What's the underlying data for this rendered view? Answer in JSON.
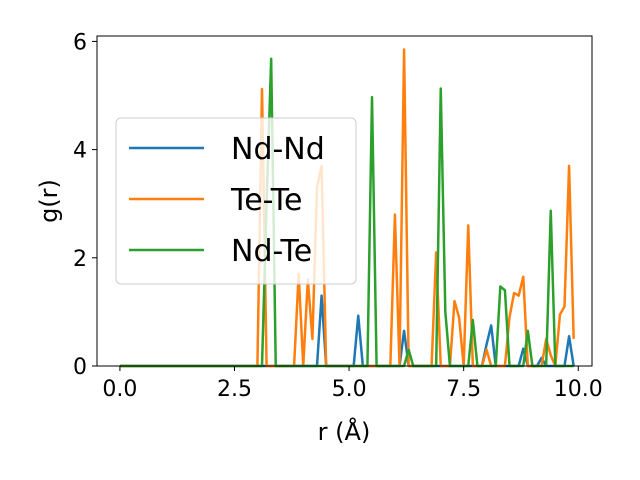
{
  "chart_data": {
    "type": "line",
    "xlabel": "r (Å)",
    "ylabel": "g(r)",
    "xlim": [
      -0.5,
      10.3
    ],
    "ylim": [
      0,
      6.1
    ],
    "xticks": [
      0.0,
      2.5,
      5.0,
      7.5,
      10.0
    ],
    "xtick_labels": [
      "0.0",
      "2.5",
      "5.0",
      "7.5",
      "10.0"
    ],
    "yticks": [
      0,
      2,
      4,
      6
    ],
    "ytick_labels": [
      "0",
      "2",
      "4",
      "6"
    ],
    "grid": false,
    "legend_position": "center-left",
    "series": [
      {
        "name": "Nd-Nd",
        "color": "#1f77b4",
        "points": [
          [
            0,
            0
          ],
          [
            4.3,
            0
          ],
          [
            4.4,
            1.3
          ],
          [
            4.5,
            0
          ],
          [
            5.1,
            0
          ],
          [
            5.2,
            0.93
          ],
          [
            5.3,
            0
          ],
          [
            6.1,
            0
          ],
          [
            6.2,
            0.65
          ],
          [
            6.3,
            0
          ],
          [
            7.9,
            0
          ],
          [
            8.0,
            0.4
          ],
          [
            8.1,
            0.75
          ],
          [
            8.2,
            0
          ],
          [
            8.7,
            0
          ],
          [
            8.8,
            0.32
          ],
          [
            8.9,
            0
          ],
          [
            9.1,
            0
          ],
          [
            9.2,
            0.15
          ],
          [
            9.3,
            0
          ],
          [
            9.7,
            0
          ],
          [
            9.8,
            0.55
          ],
          [
            9.9,
            0
          ]
        ]
      },
      {
        "name": "Te-Te",
        "color": "#ff7f0e",
        "points": [
          [
            0,
            0
          ],
          [
            3.0,
            0
          ],
          [
            3.1,
            5.12
          ],
          [
            3.2,
            0
          ],
          [
            3.8,
            0
          ],
          [
            3.9,
            1.7
          ],
          [
            4.0,
            0
          ],
          [
            4.1,
            1.6
          ],
          [
            4.2,
            0.5
          ],
          [
            4.3,
            3.3
          ],
          [
            4.4,
            3.7
          ],
          [
            4.5,
            0
          ],
          [
            5.9,
            0
          ],
          [
            6.0,
            2.8
          ],
          [
            6.1,
            0
          ],
          [
            6.2,
            5.85
          ],
          [
            6.3,
            0
          ],
          [
            6.8,
            0
          ],
          [
            6.9,
            2.1
          ],
          [
            7.0,
            0
          ],
          [
            7.1,
            0
          ],
          [
            7.2,
            0
          ],
          [
            7.3,
            1.2
          ],
          [
            7.4,
            0.9
          ],
          [
            7.5,
            0
          ],
          [
            7.6,
            2.6
          ],
          [
            7.7,
            0
          ],
          [
            7.9,
            0
          ],
          [
            8.0,
            0.3
          ],
          [
            8.1,
            0
          ],
          [
            8.4,
            0
          ],
          [
            8.5,
            0.9
          ],
          [
            8.6,
            1.35
          ],
          [
            8.7,
            1.3
          ],
          [
            8.8,
            1.65
          ],
          [
            8.9,
            0
          ],
          [
            9.2,
            0
          ],
          [
            9.3,
            0.5
          ],
          [
            9.4,
            0.2
          ],
          [
            9.5,
            0
          ],
          [
            9.6,
            0.95
          ],
          [
            9.7,
            1.1
          ],
          [
            9.8,
            3.7
          ],
          [
            9.9,
            0.5
          ]
        ]
      },
      {
        "name": "Nd-Te",
        "color": "#2ca02c",
        "points": [
          [
            0,
            0
          ],
          [
            3.1,
            0
          ],
          [
            3.2,
            3.0
          ],
          [
            3.3,
            5.68
          ],
          [
            3.4,
            0
          ],
          [
            5.4,
            0
          ],
          [
            5.5,
            4.97
          ],
          [
            5.6,
            0
          ],
          [
            6.2,
            0
          ],
          [
            6.3,
            0.3
          ],
          [
            6.4,
            0
          ],
          [
            6.9,
            0
          ],
          [
            7.0,
            5.13
          ],
          [
            7.1,
            1.0
          ],
          [
            7.2,
            0
          ],
          [
            7.6,
            0
          ],
          [
            7.7,
            0.85
          ],
          [
            7.8,
            0
          ],
          [
            8.2,
            0
          ],
          [
            8.3,
            1.47
          ],
          [
            8.4,
            1.4
          ],
          [
            8.5,
            0
          ],
          [
            8.8,
            0
          ],
          [
            8.9,
            0.65
          ],
          [
            9.0,
            0
          ],
          [
            9.3,
            0
          ],
          [
            9.4,
            2.87
          ],
          [
            9.5,
            0
          ],
          [
            9.8,
            0
          ],
          [
            9.9,
            0
          ]
        ]
      }
    ]
  }
}
